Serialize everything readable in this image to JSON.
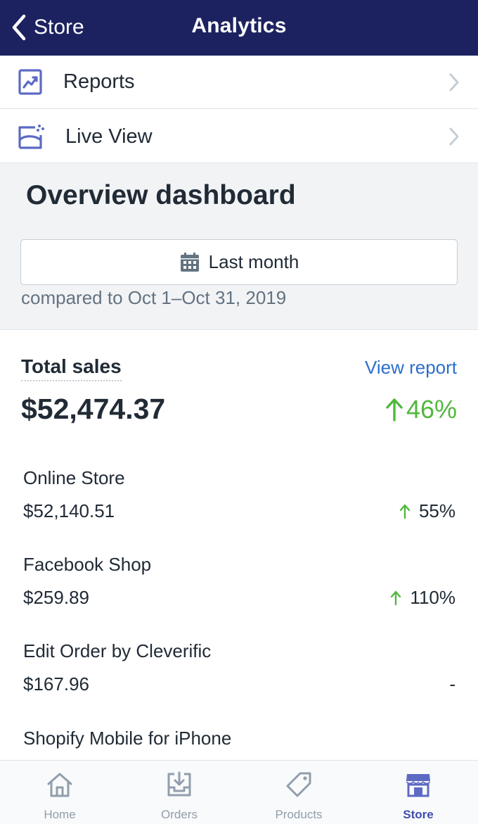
{
  "navbar": {
    "back_label": "Store",
    "title": "Analytics"
  },
  "menu": {
    "items": [
      {
        "label": "Reports",
        "icon": "reports-icon"
      },
      {
        "label": "Live View",
        "icon": "live-view-icon"
      }
    ]
  },
  "overview": {
    "title": "Overview dashboard",
    "date_range_label": "Last month",
    "compare_text": "compared to Oct 1–Oct 31, 2019"
  },
  "sales": {
    "title": "Total sales",
    "view_report_label": "View report",
    "total": "$52,474.37",
    "change": "46%",
    "channels": [
      {
        "name": "Online Store",
        "value": "$52,140.51",
        "change": "55%",
        "trend": "up"
      },
      {
        "name": "Facebook Shop",
        "value": "$259.89",
        "change": "110%",
        "trend": "up"
      },
      {
        "name": "Edit Order by Cleverific",
        "value": "$167.96",
        "change": "-",
        "trend": "none"
      },
      {
        "name": "Shopify Mobile for iPhone"
      }
    ]
  },
  "tabbar": {
    "tabs": [
      {
        "label": "Home",
        "icon": "home-icon"
      },
      {
        "label": "Orders",
        "icon": "orders-icon"
      },
      {
        "label": "Products",
        "icon": "products-icon"
      },
      {
        "label": "Store",
        "icon": "store-icon",
        "active": true
      }
    ]
  },
  "colors": {
    "navbar_bg": "#1c2260",
    "accent_blue": "#2c6ecb",
    "positive_green": "#50b83c",
    "active_tab": "#3f4eae"
  }
}
